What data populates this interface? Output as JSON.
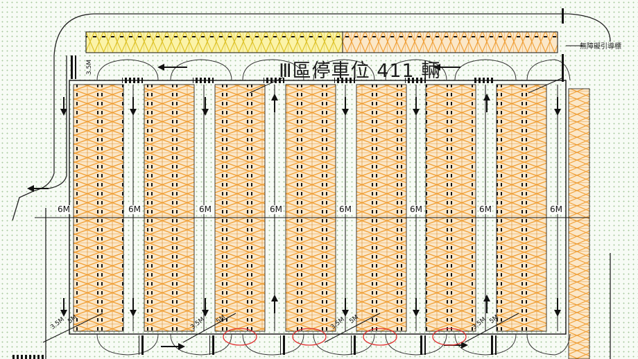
{
  "title": "Ⅲ區停車位 411 輛",
  "top_note": "無障礙引導標",
  "dimension_label": "6M",
  "corner_dimension_label": "5M",
  "side_dimension_label": "3.5M",
  "colors": {
    "stall": "#f2a23a",
    "stall_top_yellow": "#ecd72a",
    "line": "#111111",
    "highlight": "#e03131"
  }
}
